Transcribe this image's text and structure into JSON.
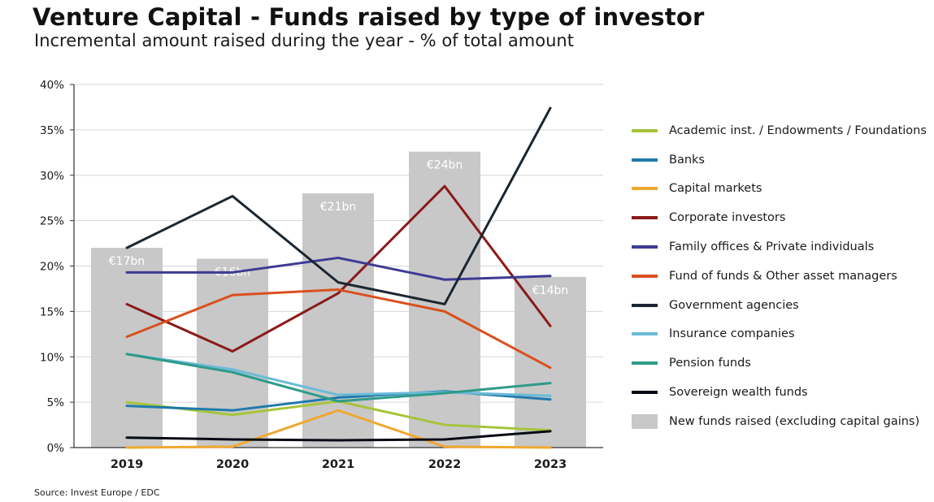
{
  "colors": {
    "bar": "#c8c8c8",
    "grid": "#d6d6d6",
    "axis": "#333333",
    "bar_label": "#ffffff"
  },
  "chart_data": {
    "type": "line",
    "title": "Venture Capital - Funds raised by type of investor",
    "subtitle": "Incremental amount raised during the year - % of total amount",
    "source": "Source: Invest Europe / EDC",
    "categories": [
      "2019",
      "2020",
      "2021",
      "2022",
      "2023"
    ],
    "ylim": [
      0,
      40
    ],
    "yticks": [
      0,
      5,
      10,
      15,
      20,
      25,
      30,
      35,
      40
    ],
    "ytick_labels": [
      "0%",
      "5%",
      "10%",
      "15%",
      "20%",
      "25%",
      "30%",
      "35%",
      "40%"
    ],
    "grid": true,
    "legend_position": "right",
    "bars": {
      "name": "New funds raised (excluding capital gains)",
      "values": [
        22,
        20.8,
        28,
        32.6,
        18.8
      ],
      "labels": [
        "€17bn",
        "€16bn",
        "€21bn",
        "€24bn",
        "€14bn"
      ]
    },
    "series": [
      {
        "name": "Academic inst. / Endowments / Foundations",
        "color": "#a6c43a",
        "values": [
          5.0,
          3.6,
          5.1,
          2.5,
          1.9
        ]
      },
      {
        "name": "Banks",
        "color": "#1f7aab",
        "values": [
          4.6,
          4.1,
          5.5,
          6.2,
          5.3
        ]
      },
      {
        "name": "Capital markets",
        "color": "#f0a830",
        "values": [
          0.0,
          0.1,
          4.1,
          0.1,
          0.0
        ]
      },
      {
        "name": "Corporate investors",
        "color": "#8b1a1a",
        "values": [
          15.8,
          10.6,
          17.0,
          28.8,
          13.4
        ]
      },
      {
        "name": "Family offices & Private individuals",
        "color": "#3d3b94",
        "values": [
          19.3,
          19.3,
          20.9,
          18.5,
          18.9
        ]
      },
      {
        "name": "Fund of funds & Other asset managers",
        "color": "#d9501e",
        "values": [
          12.2,
          16.8,
          17.4,
          15.0,
          8.8
        ]
      },
      {
        "name": "Government agencies",
        "color": "#1b2631",
        "values": [
          22.0,
          27.7,
          18.2,
          15.8,
          37.4
        ]
      },
      {
        "name": "Insurance companies",
        "color": "#6bbad8",
        "values": [
          10.3,
          8.6,
          5.8,
          6.1,
          5.7
        ]
      },
      {
        "name": "Pension funds",
        "color": "#2e9b8a",
        "values": [
          10.3,
          8.3,
          5.1,
          6.0,
          7.1
        ]
      },
      {
        "name": "Sovereign wealth funds",
        "color": "#050a14",
        "values": [
          1.1,
          0.9,
          0.8,
          0.9,
          1.8
        ]
      }
    ]
  }
}
